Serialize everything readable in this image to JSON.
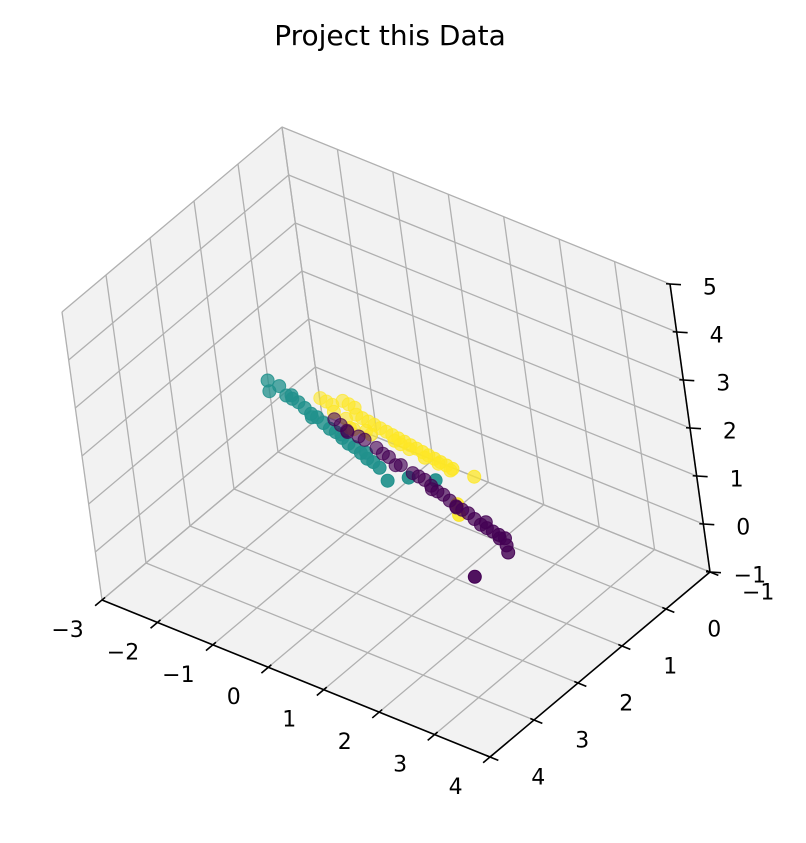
{
  "chart_data": {
    "type": "scatter",
    "title": "Project this Data",
    "xlabel": "",
    "ylabel": "",
    "zlabel": "",
    "xlim": [
      -3,
      4
    ],
    "ylim": [
      -1,
      4
    ],
    "zlim": [
      -1,
      5
    ],
    "x_ticks": [
      "−3",
      "−2",
      "−1",
      "0",
      "1",
      "2",
      "3",
      "4"
    ],
    "y_ticks": [
      "−1",
      "0",
      "1",
      "2",
      "3",
      "4"
    ],
    "z_ticks": [
      "−1",
      "0",
      "1",
      "2",
      "3",
      "4",
      "5"
    ],
    "x_tick_values": [
      -3,
      -2,
      -1,
      0,
      1,
      2,
      3,
      4
    ],
    "y_tick_values": [
      -1,
      0,
      1,
      2,
      3,
      4
    ],
    "z_tick_values": [
      -1,
      0,
      1,
      2,
      3,
      4,
      5
    ],
    "grid": true,
    "legend": "none",
    "colors": {
      "pane": "#f2f2f2",
      "grid": "#b0b0b0"
    },
    "series": [
      {
        "color": "#440154",
        "points": [
          [
            -2.4,
            -0.6,
            -0.5
          ],
          [
            -2.2,
            -0.5,
            -0.45
          ],
          [
            -2.0,
            -0.4,
            -0.4
          ],
          [
            -1.7,
            -0.3,
            -0.3
          ],
          [
            -1.5,
            -0.2,
            -0.2
          ],
          [
            -1.2,
            -0.1,
            -0.15
          ],
          [
            -1.0,
            0.0,
            -0.1
          ],
          [
            -0.8,
            0.1,
            0.0
          ],
          [
            -0.5,
            0.2,
            0.05
          ],
          [
            -0.2,
            0.3,
            0.1
          ],
          [
            0.0,
            0.4,
            0.2
          ],
          [
            0.2,
            0.5,
            0.3
          ],
          [
            0.4,
            0.6,
            0.35
          ],
          [
            0.6,
            0.7,
            0.4
          ],
          [
            0.8,
            0.8,
            0.5
          ],
          [
            1.0,
            0.9,
            0.55
          ],
          [
            1.2,
            1.0,
            0.6
          ],
          [
            1.4,
            1.1,
            0.7
          ],
          [
            1.6,
            1.2,
            0.8
          ],
          [
            1.8,
            1.3,
            0.85
          ],
          [
            2.0,
            1.4,
            0.9
          ],
          [
            2.2,
            1.5,
            1.0
          ],
          [
            2.4,
            1.6,
            1.1
          ],
          [
            2.6,
            1.7,
            1.2
          ],
          [
            2.8,
            1.8,
            1.3
          ],
          [
            3.0,
            2.0,
            1.4
          ],
          [
            3.2,
            2.2,
            1.5
          ],
          [
            4.0,
            3.8,
            2.6
          ],
          [
            -1.9,
            -0.3,
            -0.3
          ],
          [
            -0.6,
            0.2,
            0.0
          ],
          [
            0.5,
            0.7,
            0.4
          ],
          [
            1.3,
            1.1,
            0.7
          ],
          [
            2.1,
            1.4,
            1.0
          ],
          [
            2.7,
            1.8,
            1.25
          ]
        ]
      },
      {
        "color": "#21918c",
        "points": [
          [
            -1.6,
            1.5,
            2.3
          ],
          [
            -1.3,
            1.6,
            2.4
          ],
          [
            -1.0,
            1.8,
            2.5
          ],
          [
            -0.8,
            1.9,
            2.6
          ],
          [
            -0.6,
            2.0,
            2.7
          ],
          [
            -0.4,
            2.1,
            2.75
          ],
          [
            -0.2,
            2.2,
            2.8
          ],
          [
            0.0,
            2.3,
            2.9
          ],
          [
            0.2,
            2.4,
            2.95
          ],
          [
            0.4,
            2.5,
            3.0
          ],
          [
            0.6,
            2.6,
            3.1
          ],
          [
            0.8,
            2.7,
            3.15
          ],
          [
            1.0,
            2.8,
            3.2
          ],
          [
            1.2,
            2.9,
            3.3
          ],
          [
            1.4,
            3.0,
            3.35
          ],
          [
            1.6,
            3.1,
            3.4
          ],
          [
            1.8,
            3.2,
            3.5
          ],
          [
            2.0,
            3.3,
            3.55
          ],
          [
            2.4,
            3.6,
            3.7
          ],
          [
            3.0,
            3.8,
            4.2
          ],
          [
            3.6,
            3.9,
            4.5
          ],
          [
            -1.5,
            1.6,
            2.2
          ],
          [
            -0.9,
            1.8,
            2.55
          ],
          [
            -0.1,
            2.3,
            2.85
          ],
          [
            0.7,
            2.6,
            3.1
          ],
          [
            1.5,
            3.0,
            3.4
          ]
        ]
      },
      {
        "color": "#fde725",
        "points": [
          [
            -2.8,
            -0.8,
            -0.4
          ],
          [
            -2.6,
            -0.7,
            -0.3
          ],
          [
            -2.4,
            -0.6,
            -0.2
          ],
          [
            -2.1,
            -0.5,
            0.1
          ],
          [
            -1.9,
            -0.4,
            0.2
          ],
          [
            -1.7,
            -0.3,
            0.3
          ],
          [
            -1.5,
            -0.1,
            0.4
          ],
          [
            -1.3,
            0.0,
            0.5
          ],
          [
            -1.1,
            0.1,
            0.6
          ],
          [
            -0.9,
            0.2,
            0.7
          ],
          [
            -0.7,
            0.3,
            0.8
          ],
          [
            -0.5,
            0.4,
            0.9
          ],
          [
            -0.3,
            0.5,
            1.0
          ],
          [
            -0.1,
            0.6,
            1.1
          ],
          [
            0.1,
            0.7,
            1.2
          ],
          [
            0.3,
            0.8,
            1.3
          ],
          [
            0.5,
            0.9,
            1.4
          ],
          [
            0.7,
            1.0,
            1.5
          ],
          [
            0.9,
            1.1,
            1.6
          ],
          [
            1.1,
            1.2,
            1.7
          ],
          [
            1.3,
            1.3,
            1.8
          ],
          [
            1.5,
            1.4,
            1.9
          ],
          [
            1.7,
            1.5,
            2.0
          ],
          [
            -1.0,
            0.6,
            0.9
          ],
          [
            -0.6,
            0.7,
            1.1
          ],
          [
            0.2,
            1.0,
            1.5
          ],
          [
            -1.8,
            -0.2,
            0.1
          ],
          [
            -0.2,
            0.3,
            0.6
          ],
          [
            0.6,
            0.6,
            0.9
          ],
          [
            1.0,
            0.8,
            1.1
          ],
          [
            2.0,
            1.4,
            1.9
          ],
          [
            3.2,
            3.1,
            3.2
          ],
          [
            3.3,
            3.2,
            3.1
          ],
          [
            -2.2,
            -0.4,
            -0.1
          ],
          [
            -1.4,
            0.1,
            0.3
          ],
          [
            -0.8,
            0.4,
            0.7
          ],
          [
            0.4,
            1.1,
            1.6
          ],
          [
            1.2,
            1.5,
            2.0
          ]
        ]
      }
    ]
  }
}
